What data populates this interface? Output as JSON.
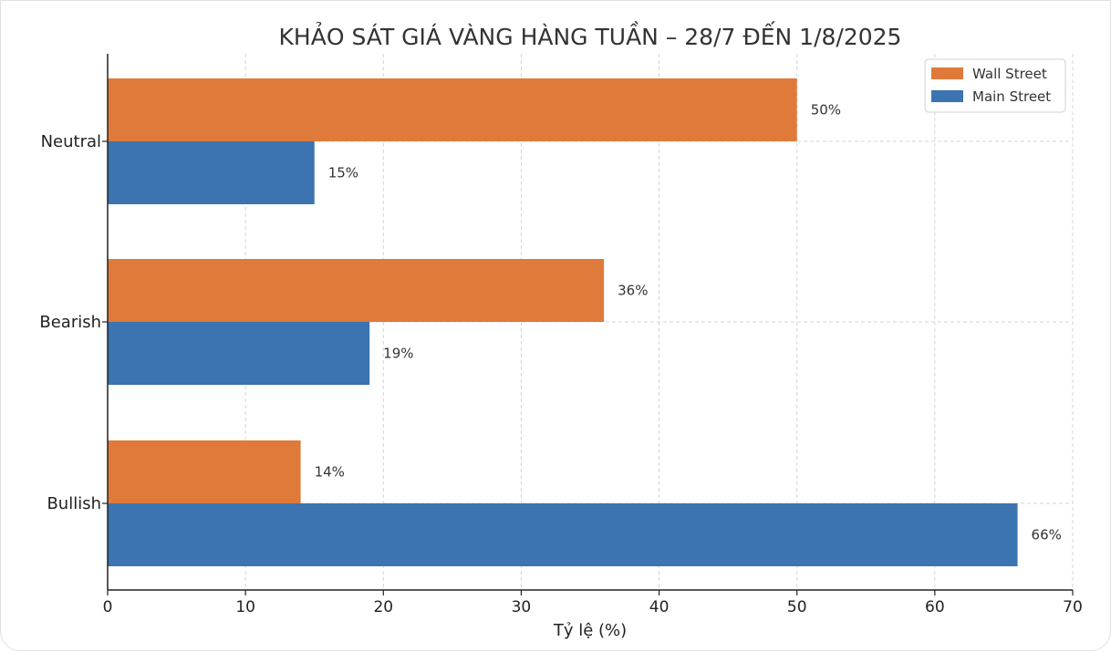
{
  "chart_data": {
    "type": "bar",
    "orientation": "horizontal",
    "title": "KHẢO SÁT GIÁ VÀNG HÀNG TUẦN – 28/7 ĐẾN 1/8/2025",
    "xlabel": "Tỷ lệ (%)",
    "ylabel": "",
    "xlim": [
      0,
      70
    ],
    "x_ticks": [
      "0",
      "10",
      "20",
      "30",
      "40",
      "50",
      "60",
      "70"
    ],
    "categories": [
      "Neutral",
      "Bearish",
      "Bullish"
    ],
    "series": [
      {
        "name": "Wall Street",
        "color": "#e07a3a",
        "values": [
          50,
          36,
          14
        ],
        "labels": [
          "50%",
          "36%",
          "14%"
        ]
      },
      {
        "name": "Main Street",
        "color": "#3b74b0",
        "values": [
          15,
          19,
          66
        ],
        "labels": [
          "15%",
          "19%",
          "66%"
        ]
      }
    ],
    "grid": true,
    "legend": "top-right"
  }
}
